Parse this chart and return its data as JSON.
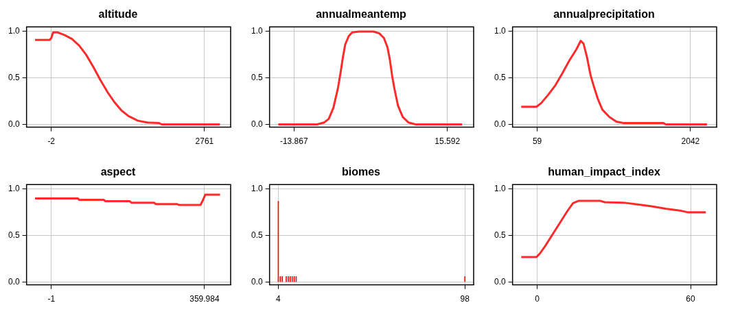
{
  "chart_data": [
    {
      "type": "line",
      "title": "altitude",
      "color": "#ff2a2a",
      "grid": true,
      "xlim": [
        -448,
        3233
      ],
      "ylim": [
        -0.03,
        1.05
      ],
      "xticks": [
        -2,
        2761
      ],
      "yticks": [
        {
          "value": 0,
          "label": "0.0"
        },
        {
          "value": 0.5,
          "label": "0.5"
        },
        {
          "value": 1,
          "label": "1.0"
        }
      ],
      "x": [
        -295,
        -32,
        -2,
        32,
        117,
        244,
        372,
        500,
        627,
        755,
        882,
        1010,
        1137,
        1265,
        1392,
        1562,
        1732,
        1944,
        1987,
        3041
      ],
      "values": [
        0.91,
        0.91,
        0.93,
        0.99,
        0.99,
        0.96,
        0.92,
        0.85,
        0.75,
        0.62,
        0.48,
        0.35,
        0.24,
        0.15,
        0.09,
        0.04,
        0.02,
        0.015,
        0,
        0
      ]
    },
    {
      "type": "line",
      "title": "annualmeantemp",
      "color": "#ff2a2a",
      "grid": true,
      "xlim": [
        -18.56,
        20.64
      ],
      "ylim": [
        -0.03,
        1.05
      ],
      "xticks": [
        -13.867,
        15.592
      ],
      "yticks": [
        {
          "value": 0,
          "label": "0.0"
        },
        {
          "value": 0.5,
          "label": "0.5"
        },
        {
          "value": 1,
          "label": "1.0"
        }
      ],
      "x": [
        -16.89,
        -9.45,
        -8.09,
        -7.19,
        -6.29,
        -5.39,
        -4.94,
        -4.48,
        -4.03,
        -3.36,
        -2.68,
        -1.33,
        1.38,
        2.51,
        3.41,
        4.09,
        4.54,
        4.99,
        5.44,
        6.12,
        7.02,
        8.15,
        9.5,
        18.43
      ],
      "values": [
        0,
        0,
        0.02,
        0.06,
        0.18,
        0.4,
        0.55,
        0.72,
        0.86,
        0.95,
        0.99,
        1,
        1,
        0.98,
        0.93,
        0.83,
        0.7,
        0.52,
        0.38,
        0.2,
        0.08,
        0.02,
        0,
        0
      ]
    },
    {
      "type": "line",
      "title": "annualprecipitation",
      "color": "#ff2a2a",
      "grid": true,
      "xlim": [
        -260,
        2380
      ],
      "ylim": [
        -0.03,
        1.05
      ],
      "xticks": [
        59,
        2042
      ],
      "yticks": [
        {
          "value": 0,
          "label": "0.0"
        },
        {
          "value": 0.5,
          "label": "0.5"
        },
        {
          "value": 1,
          "label": "1.0"
        }
      ],
      "x": [
        -148,
        50,
        111,
        202,
        293,
        384,
        476,
        567,
        622,
        658,
        704,
        749,
        795,
        841,
        901,
        993,
        1084,
        1175,
        1692,
        1723,
        2255
      ],
      "values": [
        0.19,
        0.19,
        0.23,
        0.32,
        0.42,
        0.55,
        0.69,
        0.81,
        0.9,
        0.87,
        0.72,
        0.53,
        0.4,
        0.28,
        0.16,
        0.08,
        0.03,
        0.015,
        0.015,
        0,
        0
      ]
    },
    {
      "type": "line",
      "title": "aspect",
      "color": "#ff2a2a",
      "grid": true,
      "xlim": [
        -59.3,
        421.6
      ],
      "ylim": [
        -0.03,
        1.05
      ],
      "xticks": [
        -1,
        359.984
      ],
      "yticks": [
        {
          "value": 0,
          "label": "0.0"
        },
        {
          "value": 0.5,
          "label": "0.5"
        },
        {
          "value": 1,
          "label": "1.0"
        }
      ],
      "x": [
        -39.3,
        61.8,
        64.5,
        122.9,
        126.7,
        183.9,
        187.8,
        241.2,
        245,
        295,
        300.6,
        350.6,
        356.1,
        361.7,
        396.7
      ],
      "values": [
        0.9,
        0.9,
        0.885,
        0.885,
        0.87,
        0.87,
        0.855,
        0.855,
        0.84,
        0.84,
        0.83,
        0.83,
        0.88,
        0.94,
        0.94
      ]
    },
    {
      "type": "bar",
      "title": "biomes",
      "color": "#ff0000",
      "grid": true,
      "xlim": [
        -0.41,
        102.4
      ],
      "ylim": [
        -0.03,
        1.05
      ],
      "xticks": [
        4,
        98
      ],
      "yticks": [
        {
          "value": 0,
          "label": "0.0"
        },
        {
          "value": 0.5,
          "label": "0.5"
        },
        {
          "value": 1,
          "label": "1.0"
        }
      ],
      "x": [
        4,
        5,
        6,
        8,
        9,
        10,
        11,
        12,
        13,
        98
      ],
      "values": [
        0.87,
        0.06,
        0.06,
        0.06,
        0.06,
        0.06,
        0.06,
        0.06,
        0.06,
        0.06
      ]
    },
    {
      "type": "line",
      "title": "human_impact_index",
      "color": "#ff2a2a",
      "grid": true,
      "xlim": [
        -9.66,
        70.2
      ],
      "ylim": [
        -0.03,
        1.05
      ],
      "xticks": [
        0,
        60
      ],
      "yticks": [
        {
          "value": 0,
          "label": "0.0"
        },
        {
          "value": 0.5,
          "label": "0.5"
        },
        {
          "value": 1,
          "label": "1.0"
        }
      ],
      "x": [
        -6.26,
        -0.28,
        1.1,
        3.4,
        6.16,
        8.93,
        11.69,
        13.99,
        16.29,
        24.57,
        26.41,
        33.77,
        39.29,
        44.81,
        50.33,
        55.86,
        59.08,
        65.97
      ],
      "values": [
        0.27,
        0.27,
        0.31,
        0.4,
        0.52,
        0.64,
        0.76,
        0.85,
        0.875,
        0.875,
        0.86,
        0.855,
        0.835,
        0.815,
        0.79,
        0.77,
        0.75,
        0.75
      ]
    }
  ]
}
